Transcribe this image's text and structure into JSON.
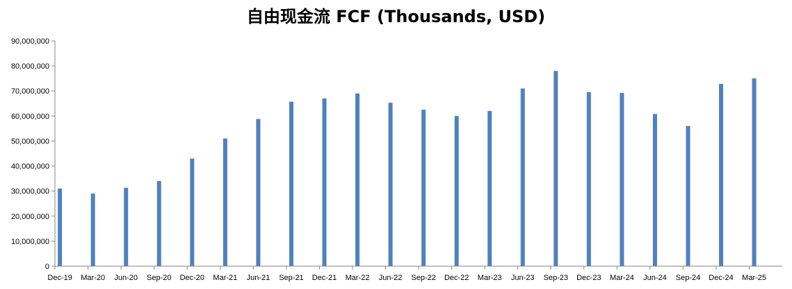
{
  "chart_data": {
    "type": "bar",
    "title": "自由现金流 FCF (Thousands, USD)",
    "xlabel": "",
    "ylabel": "",
    "ylim": [
      0,
      90000000
    ],
    "yticks": [
      "0",
      "10,000,000",
      "20,000,000",
      "30,000,000",
      "40,000,000",
      "50,000,000",
      "60,000,000",
      "70,000,000",
      "80,000,000",
      "90,000,000"
    ],
    "categories": [
      "Dec-19",
      "Mar-20",
      "Jun-20",
      "Sep-20",
      "Dec-20",
      "Mar-21",
      "Jun-21",
      "Sep-21",
      "Dec-21",
      "Mar-22",
      "Jun-22",
      "Sep-22",
      "Dec-22",
      "Mar-23",
      "Jun-23",
      "Sep-23",
      "Dec-23",
      "Mar-24",
      "Jun-24",
      "Sep-24",
      "Dec-24",
      "Mar-25"
    ],
    "values": [
      31000000,
      29000000,
      31300000,
      34000000,
      43000000,
      51000000,
      58800000,
      65700000,
      67000000,
      69000000,
      65300000,
      62500000,
      60000000,
      62000000,
      71000000,
      78000000,
      69500000,
      69200000,
      60800000,
      56000000,
      72800000,
      75000000
    ],
    "grid": false,
    "legend": "none",
    "bar_color": "#4f81bd"
  }
}
